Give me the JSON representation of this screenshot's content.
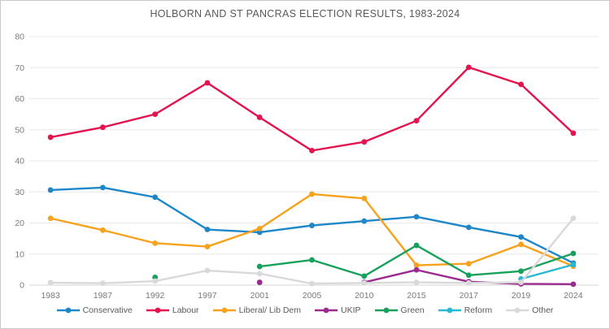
{
  "window": {
    "background": "#ffffff",
    "border_color": "#c9c9c9",
    "title_color": "#595959"
  },
  "chart_data": {
    "type": "line",
    "title": "HOLBORN AND ST PANCRAS ELECTION RESULTS, 1983-2024",
    "xlabel": "",
    "ylabel": "",
    "ylim": [
      0,
      80
    ],
    "ytick_step": 10,
    "grid": "horizontal",
    "legend_position": "bottom",
    "marker": "circle",
    "categories": [
      "1983",
      "1987",
      "1992",
      "1997",
      "2001",
      "2005",
      "2010",
      "2015",
      "2017",
      "2019",
      "2024"
    ],
    "series": [
      {
        "name": "Conservative",
        "color": "#1e87c8",
        "values": [
          30.6,
          31.4,
          28.3,
          17.9,
          17.0,
          19.2,
          20.6,
          22.0,
          18.6,
          15.5,
          7.1
        ]
      },
      {
        "name": "Labour",
        "color": "#e4134f",
        "values": [
          47.6,
          50.8,
          55.0,
          65.1,
          54.0,
          43.3,
          46.1,
          52.9,
          70.1,
          64.6,
          48.9
        ]
      },
      {
        "name": "Liberal/ Lib Dem",
        "color": "#f6a21d",
        "values": [
          21.5,
          17.7,
          13.5,
          12.4,
          18.2,
          29.3,
          27.9,
          6.4,
          6.9,
          13.1,
          6.1
        ]
      },
      {
        "name": "UKIP",
        "color": "#9c2a8f",
        "values": [
          null,
          null,
          null,
          null,
          0.9,
          null,
          0.9,
          4.9,
          1.1,
          0.4,
          0.3
        ]
      },
      {
        "name": "Green",
        "color": "#18a15c",
        "values": [
          null,
          null,
          2.5,
          null,
          6.0,
          8.1,
          2.9,
          12.8,
          3.2,
          4.5,
          10.2
        ]
      },
      {
        "name": "Reform",
        "color": "#27b8d2",
        "values": [
          null,
          null,
          null,
          null,
          null,
          null,
          null,
          null,
          null,
          2.0,
          6.6
        ]
      },
      {
        "name": "Other",
        "color": "#d9d9d9",
        "values": [
          0.8,
          0.6,
          1.3,
          4.7,
          3.7,
          0.5,
          0.7,
          0.9,
          0.7,
          0.9,
          21.5
        ]
      }
    ]
  }
}
